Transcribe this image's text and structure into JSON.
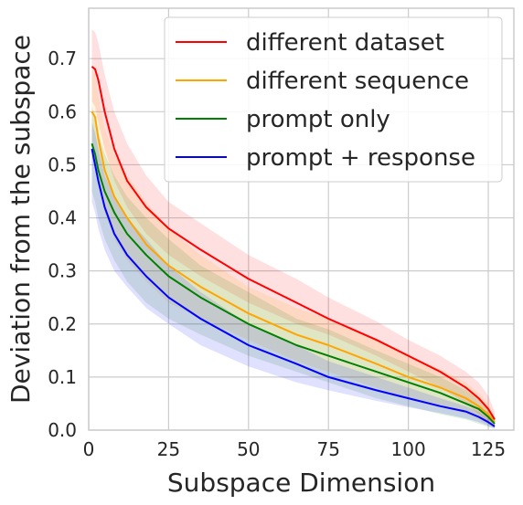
{
  "chart_data": {
    "type": "line",
    "xlabel": "Subspace Dimension",
    "ylabel": "Deviation from the subspace",
    "xlim": [
      0,
      133
    ],
    "ylim": [
      0,
      0.795
    ],
    "xticks": [
      0,
      25,
      50,
      75,
      100,
      125
    ],
    "yticks": [
      0.0,
      0.1,
      0.2,
      0.3,
      0.4,
      0.5,
      0.6,
      0.7
    ],
    "xtick_labels": [
      "0",
      "25",
      "50",
      "75",
      "100",
      "125"
    ],
    "ytick_labels": [
      "0.0",
      "0.1",
      "0.2",
      "0.3",
      "0.4",
      "0.5",
      "0.6",
      "0.7"
    ],
    "grid": true,
    "legend_position": "top-right",
    "series": [
      {
        "name": "different dataset",
        "color": "#ff0000",
        "x": [
          1,
          2,
          3,
          5,
          8,
          12,
          18,
          25,
          35,
          50,
          65,
          75,
          90,
          100,
          110,
          118,
          122,
          125,
          127
        ],
        "y": [
          0.685,
          0.68,
          0.66,
          0.6,
          0.53,
          0.47,
          0.42,
          0.38,
          0.34,
          0.285,
          0.24,
          0.21,
          0.17,
          0.14,
          0.11,
          0.08,
          0.06,
          0.04,
          0.02
        ],
        "lower": [
          0.62,
          0.61,
          0.58,
          0.53,
          0.47,
          0.42,
          0.37,
          0.33,
          0.29,
          0.24,
          0.2,
          0.18,
          0.14,
          0.11,
          0.08,
          0.05,
          0.03,
          0.015,
          0.005
        ],
        "upper": [
          0.755,
          0.75,
          0.73,
          0.67,
          0.6,
          0.54,
          0.48,
          0.43,
          0.39,
          0.33,
          0.285,
          0.25,
          0.205,
          0.17,
          0.14,
          0.11,
          0.09,
          0.065,
          0.035
        ]
      },
      {
        "name": "different sequence",
        "color": "#ffa500",
        "x": [
          1,
          2,
          3,
          5,
          8,
          12,
          18,
          25,
          35,
          50,
          65,
          75,
          90,
          100,
          110,
          118,
          122,
          125,
          127
        ],
        "y": [
          0.6,
          0.59,
          0.55,
          0.49,
          0.44,
          0.4,
          0.35,
          0.31,
          0.27,
          0.22,
          0.18,
          0.16,
          0.125,
          0.1,
          0.08,
          0.06,
          0.045,
          0.03,
          0.015
        ],
        "lower": [
          0.51,
          0.5,
          0.46,
          0.41,
          0.36,
          0.32,
          0.28,
          0.24,
          0.21,
          0.17,
          0.13,
          0.11,
          0.08,
          0.06,
          0.045,
          0.03,
          0.02,
          0.01,
          0.004
        ],
        "upper": [
          0.68,
          0.67,
          0.63,
          0.57,
          0.52,
          0.48,
          0.43,
          0.38,
          0.33,
          0.27,
          0.23,
          0.21,
          0.17,
          0.14,
          0.115,
          0.09,
          0.07,
          0.05,
          0.025
        ]
      },
      {
        "name": "prompt only",
        "color": "#008000",
        "x": [
          1,
          2,
          3,
          5,
          8,
          12,
          18,
          25,
          35,
          50,
          65,
          75,
          90,
          100,
          110,
          118,
          122,
          125,
          127
        ],
        "y": [
          0.54,
          0.52,
          0.49,
          0.45,
          0.41,
          0.37,
          0.33,
          0.29,
          0.25,
          0.2,
          0.16,
          0.14,
          0.11,
          0.09,
          0.07,
          0.05,
          0.04,
          0.025,
          0.012
        ],
        "lower": [
          0.45,
          0.43,
          0.4,
          0.36,
          0.32,
          0.28,
          0.24,
          0.21,
          0.18,
          0.14,
          0.11,
          0.09,
          0.06,
          0.045,
          0.03,
          0.02,
          0.012,
          0.006,
          0.002
        ],
        "upper": [
          0.61,
          0.59,
          0.56,
          0.52,
          0.48,
          0.44,
          0.4,
          0.36,
          0.31,
          0.26,
          0.21,
          0.19,
          0.15,
          0.125,
          0.1,
          0.075,
          0.06,
          0.04,
          0.02
        ]
      },
      {
        "name": "prompt + response",
        "color": "#0000ff",
        "x": [
          1,
          2,
          3,
          5,
          8,
          12,
          18,
          25,
          35,
          50,
          65,
          75,
          90,
          100,
          110,
          118,
          122,
          125,
          127
        ],
        "y": [
          0.53,
          0.5,
          0.47,
          0.42,
          0.37,
          0.33,
          0.29,
          0.25,
          0.21,
          0.16,
          0.125,
          0.1,
          0.075,
          0.06,
          0.045,
          0.035,
          0.025,
          0.015,
          0.007
        ],
        "lower": [
          0.43,
          0.41,
          0.38,
          0.34,
          0.3,
          0.27,
          0.23,
          0.2,
          0.16,
          0.12,
          0.09,
          0.075,
          0.055,
          0.043,
          0.032,
          0.022,
          0.015,
          0.008,
          0.003
        ],
        "upper": [
          0.58,
          0.56,
          0.53,
          0.48,
          0.44,
          0.4,
          0.36,
          0.31,
          0.26,
          0.2,
          0.16,
          0.13,
          0.1,
          0.08,
          0.06,
          0.045,
          0.035,
          0.022,
          0.012
        ]
      }
    ]
  }
}
